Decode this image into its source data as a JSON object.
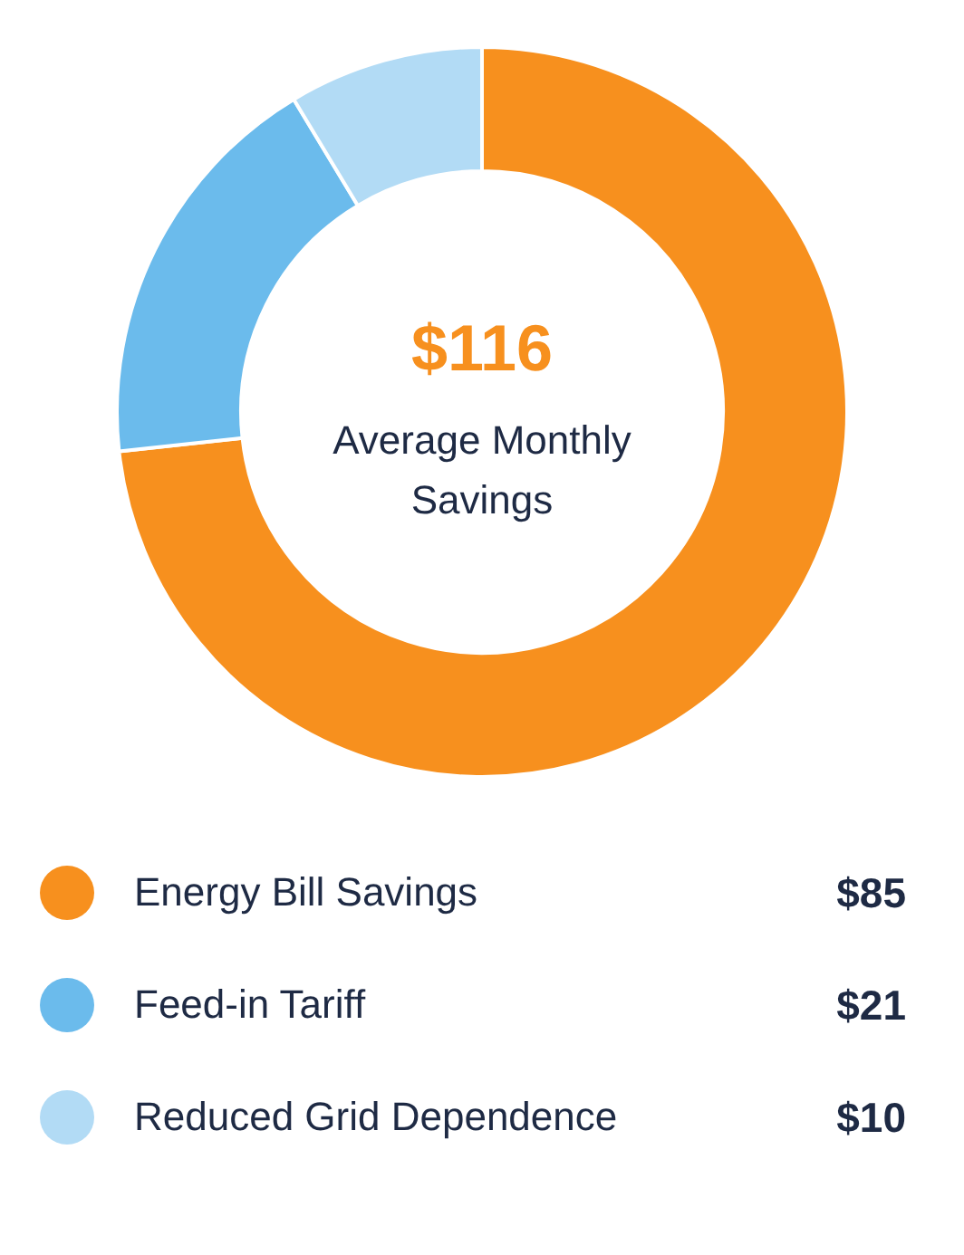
{
  "chart_data": {
    "type": "donut",
    "categories": [
      "Energy Bill Savings",
      "Feed-in Tariff",
      "Reduced Grid Dependence"
    ],
    "values": [
      85,
      21,
      10
    ],
    "colors": [
      "#f7901e",
      "#6bbbec",
      "#b2dbf5"
    ],
    "value_labels": [
      "$85",
      "$21",
      "$10"
    ],
    "annotations": [
      "$116",
      "Average Monthly Savings"
    ],
    "legend": "bottom"
  }
}
